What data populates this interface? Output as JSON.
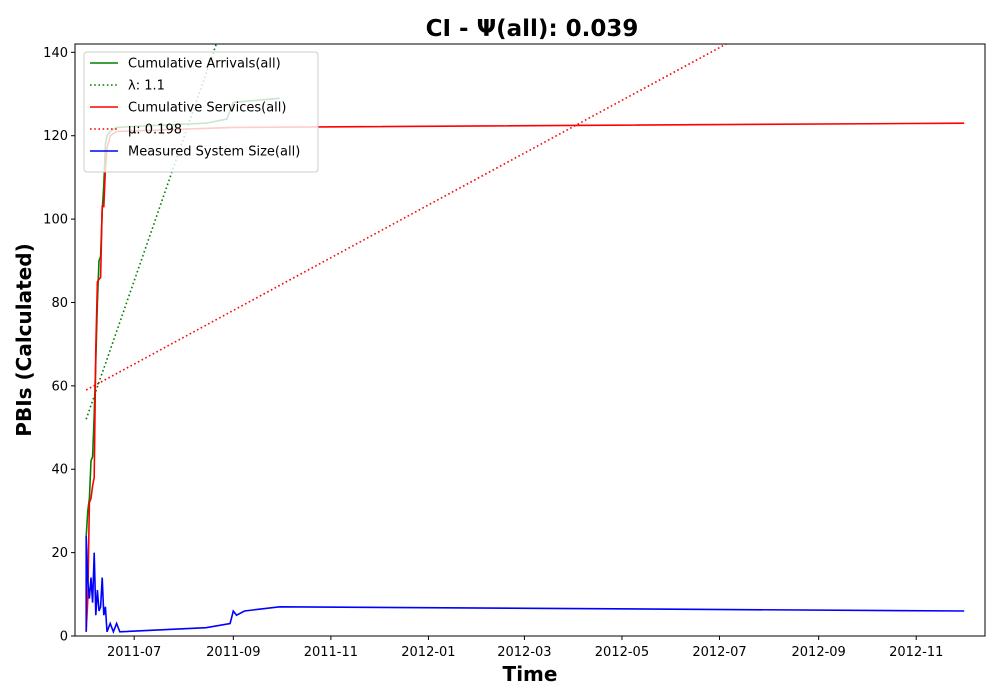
{
  "chart_data": {
    "type": "line",
    "title": "CI -  Ψ(all): 0.039",
    "xlabel": "Time",
    "ylabel": "PBIs (Calculated)",
    "xlim": [
      "2011-05-25",
      "2012-12-14"
    ],
    "ylim": [
      0,
      142
    ],
    "x_ticks": [
      "2011-07",
      "2011-09",
      "2011-11",
      "2012-01",
      "2012-03",
      "2012-05",
      "2012-07",
      "2012-09",
      "2012-11"
    ],
    "y_ticks": [
      0,
      20,
      40,
      60,
      80,
      100,
      120,
      140
    ],
    "legend_position": "top-left",
    "grid": false,
    "series": [
      {
        "name": "Cumulative Arrivals(all)",
        "color": "#008000",
        "style": "solid",
        "points": [
          [
            "2011-06-01",
            24
          ],
          [
            "2011-06-02",
            30
          ],
          [
            "2011-06-03",
            33
          ],
          [
            "2011-06-04",
            42
          ],
          [
            "2011-06-05",
            43
          ],
          [
            "2011-06-06",
            53
          ],
          [
            "2011-06-07",
            66
          ],
          [
            "2011-06-08",
            80
          ],
          [
            "2011-06-09",
            90
          ],
          [
            "2011-06-10",
            91
          ],
          [
            "2011-06-11",
            102
          ],
          [
            "2011-06-12",
            108
          ],
          [
            "2011-06-13",
            118
          ],
          [
            "2011-06-14",
            120
          ],
          [
            "2011-06-16",
            121
          ],
          [
            "2011-06-20",
            122
          ],
          [
            "2011-07-15",
            122.5
          ],
          [
            "2011-08-15",
            123
          ],
          [
            "2011-08-28",
            124
          ],
          [
            "2011-09-01",
            128
          ],
          [
            "2011-09-30",
            129
          ]
        ]
      },
      {
        "name": "λ: 1.1",
        "color": "#008000",
        "style": "dotted",
        "points": [
          [
            "2011-06-01",
            52
          ],
          [
            "2011-08-25",
            146
          ]
        ]
      },
      {
        "name": "Cumulative Services(all)",
        "color": "#ff0000",
        "style": "solid",
        "points": [
          [
            "2011-06-01",
            1
          ],
          [
            "2011-06-02",
            9
          ],
          [
            "2011-06-03",
            32
          ],
          [
            "2011-06-04",
            33
          ],
          [
            "2011-06-05",
            36
          ],
          [
            "2011-06-06",
            38
          ],
          [
            "2011-06-07",
            69
          ],
          [
            "2011-06-08",
            85
          ],
          [
            "2011-06-10",
            86
          ],
          [
            "2011-06-11",
            103
          ],
          [
            "2011-06-12",
            103
          ],
          [
            "2011-06-13",
            112
          ],
          [
            "2011-06-14",
            117
          ],
          [
            "2011-06-16",
            120
          ],
          [
            "2011-06-20",
            121
          ],
          [
            "2011-09-01",
            122
          ],
          [
            "2012-12-01",
            123
          ]
        ]
      },
      {
        "name": "μ: 0.198",
        "color": "#ff0000",
        "style": "dotted",
        "points": [
          [
            "2011-06-01",
            59
          ],
          [
            "2012-07-10",
            143
          ]
        ]
      },
      {
        "name": "Measured System Size(all)",
        "color": "#0000ff",
        "style": "solid",
        "points": [
          [
            "2011-06-01",
            1
          ],
          [
            "2011-06-01",
            24
          ],
          [
            "2011-06-02",
            13
          ],
          [
            "2011-06-03",
            9
          ],
          [
            "2011-06-04",
            14
          ],
          [
            "2011-06-05",
            8
          ],
          [
            "2011-06-06",
            20
          ],
          [
            "2011-06-07",
            5
          ],
          [
            "2011-06-08",
            11
          ],
          [
            "2011-06-09",
            6
          ],
          [
            "2011-06-10",
            7
          ],
          [
            "2011-06-11",
            14
          ],
          [
            "2011-06-12",
            5
          ],
          [
            "2011-06-13",
            7
          ],
          [
            "2011-06-14",
            1
          ],
          [
            "2011-06-16",
            3
          ],
          [
            "2011-06-18",
            1
          ],
          [
            "2011-06-20",
            3
          ],
          [
            "2011-06-22",
            1
          ],
          [
            "2011-08-15",
            2
          ],
          [
            "2011-08-30",
            3
          ],
          [
            "2011-09-01",
            6
          ],
          [
            "2011-09-03",
            5
          ],
          [
            "2011-09-08",
            6
          ],
          [
            "2011-09-30",
            7
          ],
          [
            "2012-12-01",
            6
          ]
        ]
      }
    ]
  }
}
